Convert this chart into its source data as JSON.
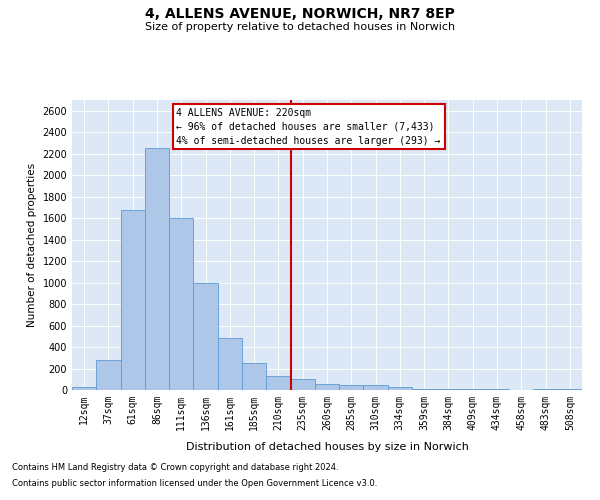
{
  "title": "4, ALLENS AVENUE, NORWICH, NR7 8EP",
  "subtitle": "Size of property relative to detached houses in Norwich",
  "xlabel": "Distribution of detached houses by size in Norwich",
  "ylabel": "Number of detached properties",
  "footnote1": "Contains HM Land Registry data © Crown copyright and database right 2024.",
  "footnote2": "Contains public sector information licensed under the Open Government Licence v3.0.",
  "annotation_title": "4 ALLENS AVENUE: 220sqm",
  "annotation_line1": "← 96% of detached houses are smaller (7,433)",
  "annotation_line2": "4% of semi-detached houses are larger (293) →",
  "bar_categories": [
    "12sqm",
    "37sqm",
    "61sqm",
    "86sqm",
    "111sqm",
    "136sqm",
    "161sqm",
    "185sqm",
    "210sqm",
    "235sqm",
    "260sqm",
    "285sqm",
    "310sqm",
    "334sqm",
    "359sqm",
    "384sqm",
    "409sqm",
    "434sqm",
    "458sqm",
    "483sqm",
    "508sqm"
  ],
  "bar_heights": [
    30,
    280,
    1680,
    2250,
    1600,
    1000,
    480,
    250,
    130,
    100,
    60,
    50,
    50,
    30,
    10,
    10,
    5,
    5,
    0,
    5,
    5
  ],
  "bar_color": "#aec6e8",
  "bar_edge_color": "#5b9bd5",
  "vline_color": "#cc0000",
  "background_color": "#dce8f5",
  "ylim": [
    0,
    2700
  ],
  "yticks": [
    0,
    200,
    400,
    600,
    800,
    1000,
    1200,
    1400,
    1600,
    1800,
    2000,
    2200,
    2400,
    2600
  ],
  "title_fontsize": 10,
  "subtitle_fontsize": 8,
  "ylabel_fontsize": 7.5,
  "xlabel_fontsize": 8,
  "tick_fontsize": 7,
  "footnote_fontsize": 6
}
